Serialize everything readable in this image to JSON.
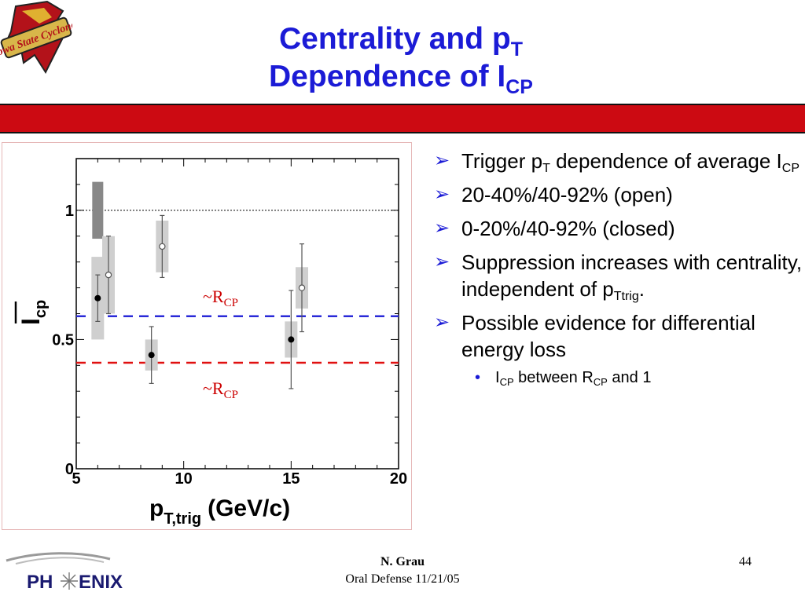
{
  "logo": {
    "text": "Iowa State Cyclones"
  },
  "title": {
    "line1_main": "Centrality and p",
    "line1_sub": "T",
    "line2_main": "Dependence of I",
    "line2_sub": "CP"
  },
  "chart_data": {
    "type": "scatter",
    "xlabel_main": "p",
    "xlabel_sub": "T,trig",
    "xlabel_units": "(GeV/c)",
    "ylabel_main": "I",
    "ylabel_sub": "cp",
    "xlim": [
      5,
      20
    ],
    "ylim": [
      0,
      1.2
    ],
    "x_ticks": [
      "5",
      "10",
      "15",
      "20"
    ],
    "y_ticks": [
      "0",
      "0.5",
      "1"
    ],
    "reference_line": 1.0,
    "rcp_upper": {
      "label_main": "~R",
      "label_sub": "CP",
      "y": 0.59
    },
    "rcp_lower": {
      "label_main": "~R",
      "label_sub": "CP",
      "y": 0.41
    },
    "normalization_box": {
      "x": 6.0,
      "ylow": 0.89,
      "yhigh": 1.11
    },
    "series": [
      {
        "name": "20-40%/40-92% (open)",
        "points": [
          {
            "x": 6.5,
            "y": 0.75,
            "err": 0.15,
            "sys": 0.15
          },
          {
            "x": 9.0,
            "y": 0.86,
            "err": 0.12,
            "sys": 0.1
          },
          {
            "x": 15.5,
            "y": 0.7,
            "err": 0.17,
            "sys": 0.08
          }
        ]
      },
      {
        "name": "0-20%/40-92% (closed)",
        "points": [
          {
            "x": 6.0,
            "y": 0.66,
            "err": 0.09,
            "sys": 0.16
          },
          {
            "x": 8.5,
            "y": 0.44,
            "err": 0.11,
            "sys": 0.06
          },
          {
            "x": 15.0,
            "y": 0.5,
            "err": 0.19,
            "sys": 0.07
          }
        ]
      }
    ]
  },
  "bullets": {
    "b1_pre": "Trigger p",
    "b1_sub": "T",
    "b1_post": " dependence of average I",
    "b1_sub2": "CP",
    "b2": "20-40%/40-92% (open)",
    "b3": "0-20%/40-92% (closed)",
    "b4_pre": "Suppression increases with centrality, independent of p",
    "b4_sub": "Ttrig",
    "b4_post": ".",
    "b5": "Possible evidence for differential energy loss",
    "b6_pre": "I",
    "b6_sub": "CP",
    "b6_mid": " between R",
    "b6_sub2": "CP",
    "b6_post": " and 1"
  },
  "footer": {
    "author": "N. Grau",
    "event": "Oral Defense 11/21/05",
    "slide_number": "44",
    "phenix_left": "PH",
    "phenix_right": "ENIX"
  },
  "colors": {
    "title": "#1b1bd6",
    "bar": "#cc0a12",
    "upper_line": "#2a2ad8",
    "lower_line": "#e01010",
    "rcp_label": "#cc0000"
  }
}
